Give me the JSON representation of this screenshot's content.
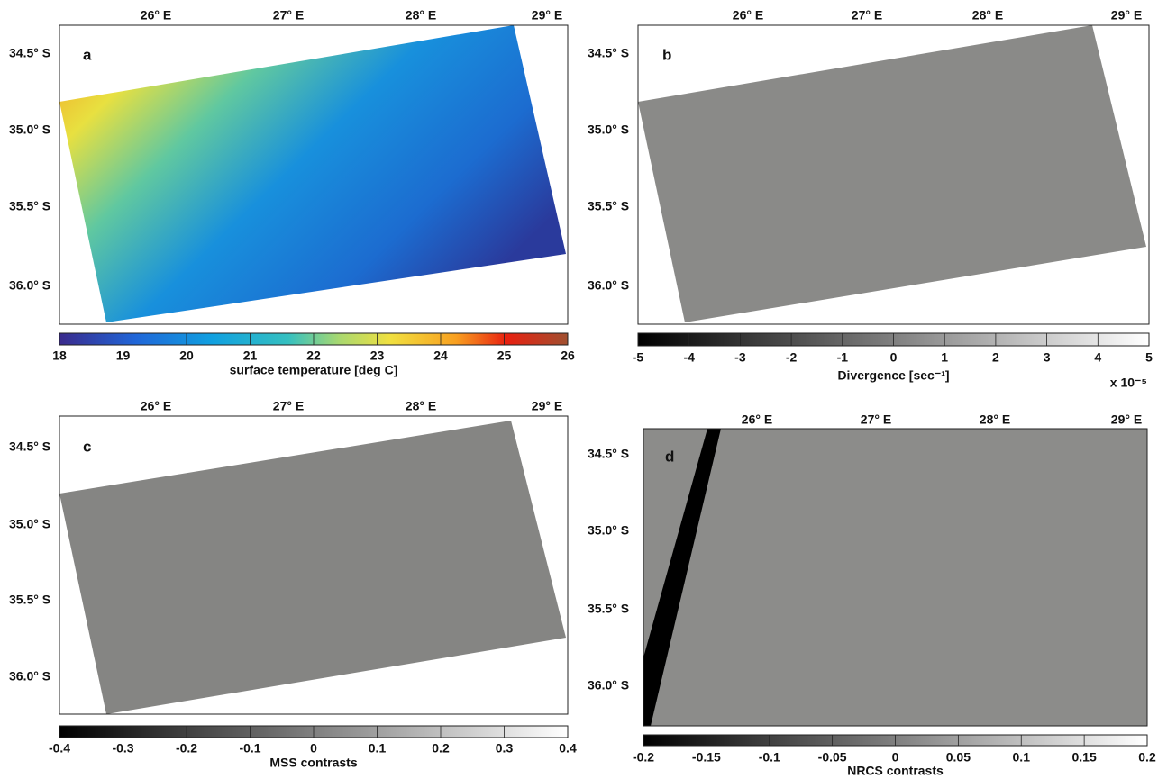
{
  "panels": [
    {
      "label": "a",
      "lon_ticks": [
        "26° E",
        "27° E",
        "28° E",
        "29° E"
      ],
      "lat_ticks": [
        "34.5° S",
        "35.0° S",
        "35.5° S",
        "36.0° S"
      ],
      "colorbar": {
        "range": [
          18,
          26
        ],
        "ticks": [
          18,
          19,
          20,
          21,
          22,
          23,
          24,
          25,
          26
        ],
        "label": "surface temperature [deg C]"
      }
    },
    {
      "label": "b",
      "lon_ticks": [
        "26° E",
        "27° E",
        "28° E",
        "29° E"
      ],
      "lat_ticks": [
        "34.5° S",
        "35.0° S",
        "35.5° S",
        "36.0° S"
      ],
      "colorbar": {
        "range": [
          -5,
          5
        ],
        "ticks": [
          -5,
          -4,
          -3,
          -2,
          -1,
          0,
          1,
          2,
          3,
          4,
          5
        ],
        "label": "Divergence [sec⁻¹]",
        "scale_note": "x 10⁻⁵"
      }
    },
    {
      "label": "c",
      "lon_ticks": [
        "26° E",
        "27° E",
        "28° E",
        "29° E"
      ],
      "lat_ticks": [
        "34.5° S",
        "35.0° S",
        "35.5° S",
        "36.0° S"
      ],
      "colorbar": {
        "range": [
          -0.4,
          0.4
        ],
        "ticks": [
          -0.4,
          -0.3,
          -0.2,
          -0.1,
          0,
          0.1,
          0.2,
          0.3,
          0.4
        ],
        "label": "MSS contrasts"
      }
    },
    {
      "label": "d",
      "lon_ticks": [
        "26° E",
        "27° E",
        "28° E",
        "29° E"
      ],
      "lat_ticks": [
        "34.5° S",
        "35.0° S",
        "35.5° S",
        "36.0° S"
      ],
      "colorbar": {
        "range": [
          -0.2,
          0.2
        ],
        "ticks": [
          -0.2,
          -0.15,
          -0.1,
          -0.05,
          0,
          0.05,
          0.1,
          0.15,
          0.2
        ],
        "label": "NRCS contrasts"
      }
    }
  ]
}
